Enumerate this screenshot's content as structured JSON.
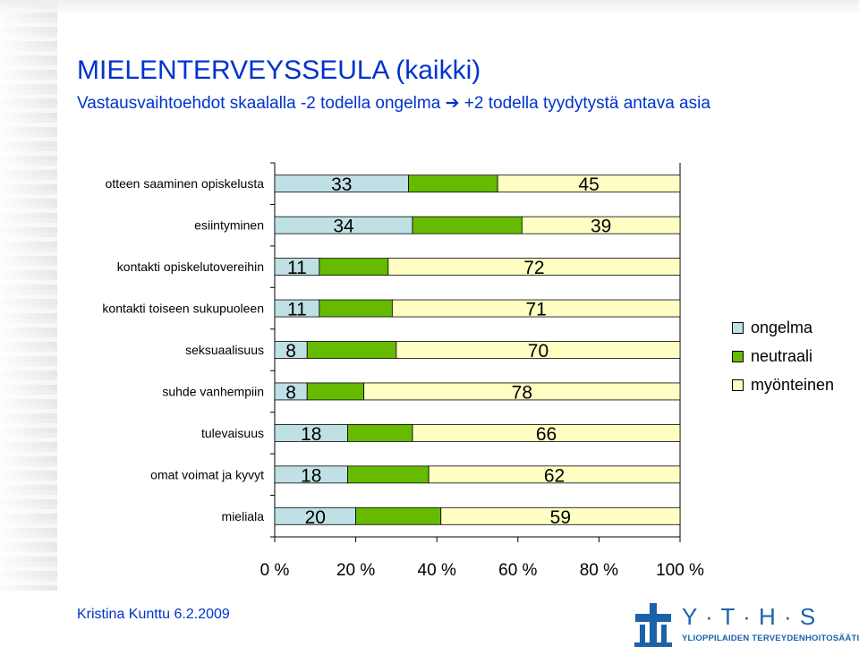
{
  "title": "MIELENTERVEYSSEULA (kaikki)",
  "subtitle": "Vastausvaihtoehdot skaalalla -2 todella ongelma ➔ +2 todella tyydytystä antava asia",
  "chart_data": {
    "type": "bar",
    "orientation": "horizontal",
    "stacked": "percent",
    "categories": [
      "otteen saaminen opiskelusta",
      "esiintyminen",
      "kontakti opiskelutovereihin",
      "kontakti toiseen sukupuoleen",
      "seksuaalisuus",
      "suhde vanhempiin",
      "tulevaisuus",
      "omat voimat ja kyvyt",
      "mieliala"
    ],
    "series": [
      {
        "name": "ongelma",
        "color": "#bfe1e6",
        "values": [
          33,
          34,
          11,
          11,
          8,
          8,
          18,
          18,
          20
        ]
      },
      {
        "name": "neutraali",
        "color": "#66bb00",
        "values": [
          22,
          27,
          17,
          18,
          22,
          14,
          16,
          20,
          21
        ]
      },
      {
        "name": "myönteinen",
        "color": "#ffffc4",
        "values": [
          45,
          39,
          72,
          71,
          70,
          78,
          66,
          62,
          59
        ]
      }
    ],
    "labeled_series": [
      "ongelma",
      "myönteinen"
    ],
    "x_ticks": [
      "0 %",
      "20 %",
      "40 %",
      "60 %",
      "80 %",
      "100 %"
    ],
    "xlim": [
      0,
      100
    ],
    "grid": false,
    "legend_position": "right"
  },
  "footer": {
    "author": "Kristina Kunttu 6.2.2009",
    "logo_word": "Y · T · H · S",
    "logo_org": "YLIOPPILAIDEN TERVEYDENHOITOSÄÄTIÖ",
    "logo_icon": "cross-pillars-icon",
    "brand_color": "#1c62a8"
  }
}
